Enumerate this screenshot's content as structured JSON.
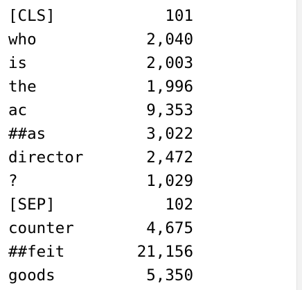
{
  "output": {
    "rows": [
      {
        "token": "[CLS]",
        "id": "101"
      },
      {
        "token": "who",
        "id": "2,040"
      },
      {
        "token": "is",
        "id": "2,003"
      },
      {
        "token": "the",
        "id": "1,996"
      },
      {
        "token": "ac",
        "id": "9,353"
      },
      {
        "token": "##as",
        "id": "3,022"
      },
      {
        "token": "director",
        "id": "2,472"
      },
      {
        "token": "?",
        "id": "1,029"
      },
      {
        "token": "[SEP]",
        "id": "102"
      },
      {
        "token": "counter",
        "id": "4,675"
      },
      {
        "token": "##feit",
        "id": "21,156"
      },
      {
        "token": "goods",
        "id": "5,350"
      }
    ]
  }
}
